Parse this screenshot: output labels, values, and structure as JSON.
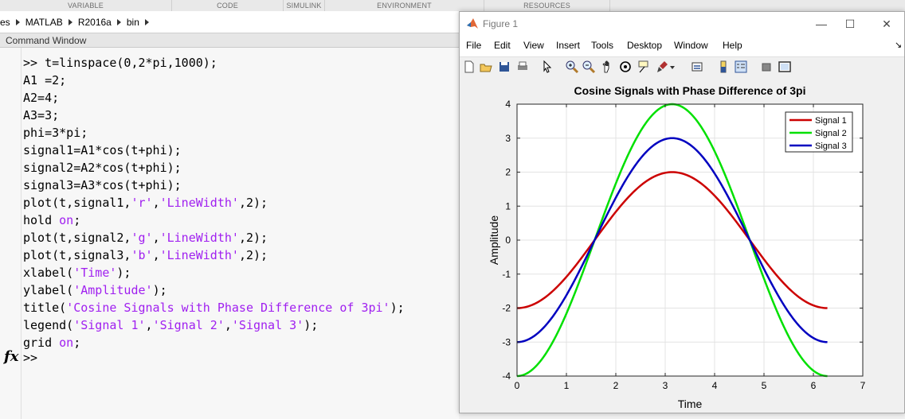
{
  "toolstrip": {
    "sections": [
      "VARIABLE",
      "CODE",
      "SIMULINK",
      "ENVIRONMENT",
      "RESOURCES"
    ]
  },
  "address": {
    "crumbs": [
      "es",
      "MATLAB",
      "R2016a",
      "bin"
    ]
  },
  "command_window": {
    "title": "Command Window",
    "prompt": ">>"
  },
  "figure": {
    "title": "Figure 1",
    "menu": [
      "File",
      "Edit",
      "View",
      "Insert",
      "Tools",
      "Desktop",
      "Window",
      "Help"
    ],
    "icons": [
      "new-figure-icon",
      "open-file-icon",
      "save-icon",
      "print-icon",
      "pointer-icon",
      "zoom-in-icon",
      "zoom-out-icon",
      "pan-icon",
      "rotate-3d-icon",
      "data-cursor-icon",
      "brush-icon",
      "brush-dropdown-icon",
      "link-plot-icon",
      "colorbar-icon",
      "legend-icon",
      "hide-plot-tools-icon",
      "show-plot-tools-icon"
    ]
  },
  "chart_data": {
    "type": "line",
    "title": "Cosine Signals with Phase Difference of 3pi",
    "xlabel": "Time",
    "ylabel": "Amplitude",
    "xlim": [
      0,
      7
    ],
    "ylim": [
      -4,
      4
    ],
    "xticks": [
      0,
      1,
      2,
      3,
      4,
      5,
      6,
      7
    ],
    "yticks": [
      -4,
      -3,
      -2,
      -1,
      0,
      1,
      2,
      3,
      4
    ],
    "grid": true,
    "legend_position": "top-right",
    "x_range": [
      0,
      6.283185
    ],
    "series": [
      {
        "name": "Signal 1",
        "color": "#cc0000",
        "amplitude": 2,
        "phase": 9.424778
      },
      {
        "name": "Signal 2",
        "color": "#00e000",
        "amplitude": 4,
        "phase": 9.424778
      },
      {
        "name": "Signal 3",
        "color": "#0000c0",
        "amplitude": 3,
        "phase": 9.424778
      }
    ]
  }
}
